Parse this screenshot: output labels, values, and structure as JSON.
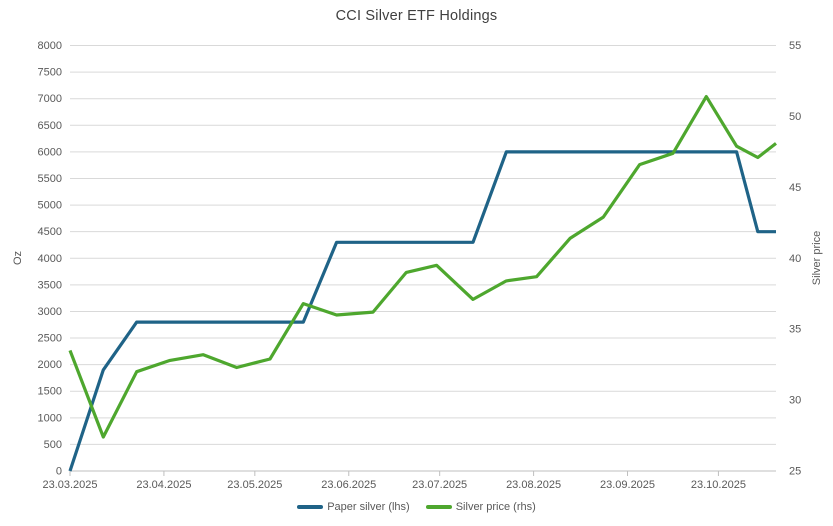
{
  "title": "CCI Silver ETF Holdings",
  "colors": {
    "paper_silver": "#1f6387",
    "silver_price": "#4ea72e",
    "gridline": "#d9d9d9",
    "axis_line": "#bfbfbf",
    "tick_text": "#595959",
    "title_text": "#3f3f3f"
  },
  "chart_data": {
    "type": "line",
    "title": "CCI Silver ETF Holdings",
    "grid": true,
    "legend_position": "bottom",
    "x_axis": {
      "tick_labels": [
        "23.03.2025",
        "23.04.2025",
        "23.05.2025",
        "23.06.2025",
        "23.07.2025",
        "23.08.2025",
        "23.09.2025",
        "23.10.2025"
      ],
      "tick_days": [
        0,
        31,
        61,
        92,
        122,
        153,
        184,
        214
      ],
      "domain_days": [
        0,
        233
      ]
    },
    "y_left": {
      "label": "Oz",
      "min": 0,
      "max": 8000,
      "step": 500
    },
    "y_right": {
      "label": "Silver price",
      "min": 25,
      "max": 55,
      "step": 5
    },
    "x_days": [
      0,
      11,
      22,
      33,
      44,
      55,
      66,
      77,
      88,
      100,
      111,
      121,
      133,
      144,
      154,
      165,
      176,
      188,
      199,
      210,
      220,
      227,
      233
    ],
    "series": [
      {
        "name": "Paper silver (lhs)",
        "axis": "left",
        "color": "#1f6387",
        "values": [
          0,
          1900,
          2800,
          2800,
          2800,
          2800,
          2800,
          2800,
          4300,
          4300,
          4300,
          4300,
          4300,
          6000,
          6000,
          6000,
          6000,
          6000,
          6000,
          6000,
          6000,
          4500,
          4500
        ]
      },
      {
        "name": "Silver price (rhs)",
        "axis": "right",
        "color": "#4ea72e",
        "values": [
          33.5,
          27.4,
          32.0,
          32.8,
          33.2,
          32.3,
          32.9,
          36.8,
          36.0,
          36.2,
          39.0,
          39.5,
          37.1,
          38.4,
          38.7,
          41.4,
          42.9,
          46.6,
          47.4,
          51.4,
          47.9,
          47.1,
          48.1
        ]
      }
    ]
  },
  "legend": {
    "items": [
      {
        "label": "Paper silver (lhs)",
        "color": "#1f6387"
      },
      {
        "label": "Silver price (rhs)",
        "color": "#4ea72e"
      }
    ]
  }
}
